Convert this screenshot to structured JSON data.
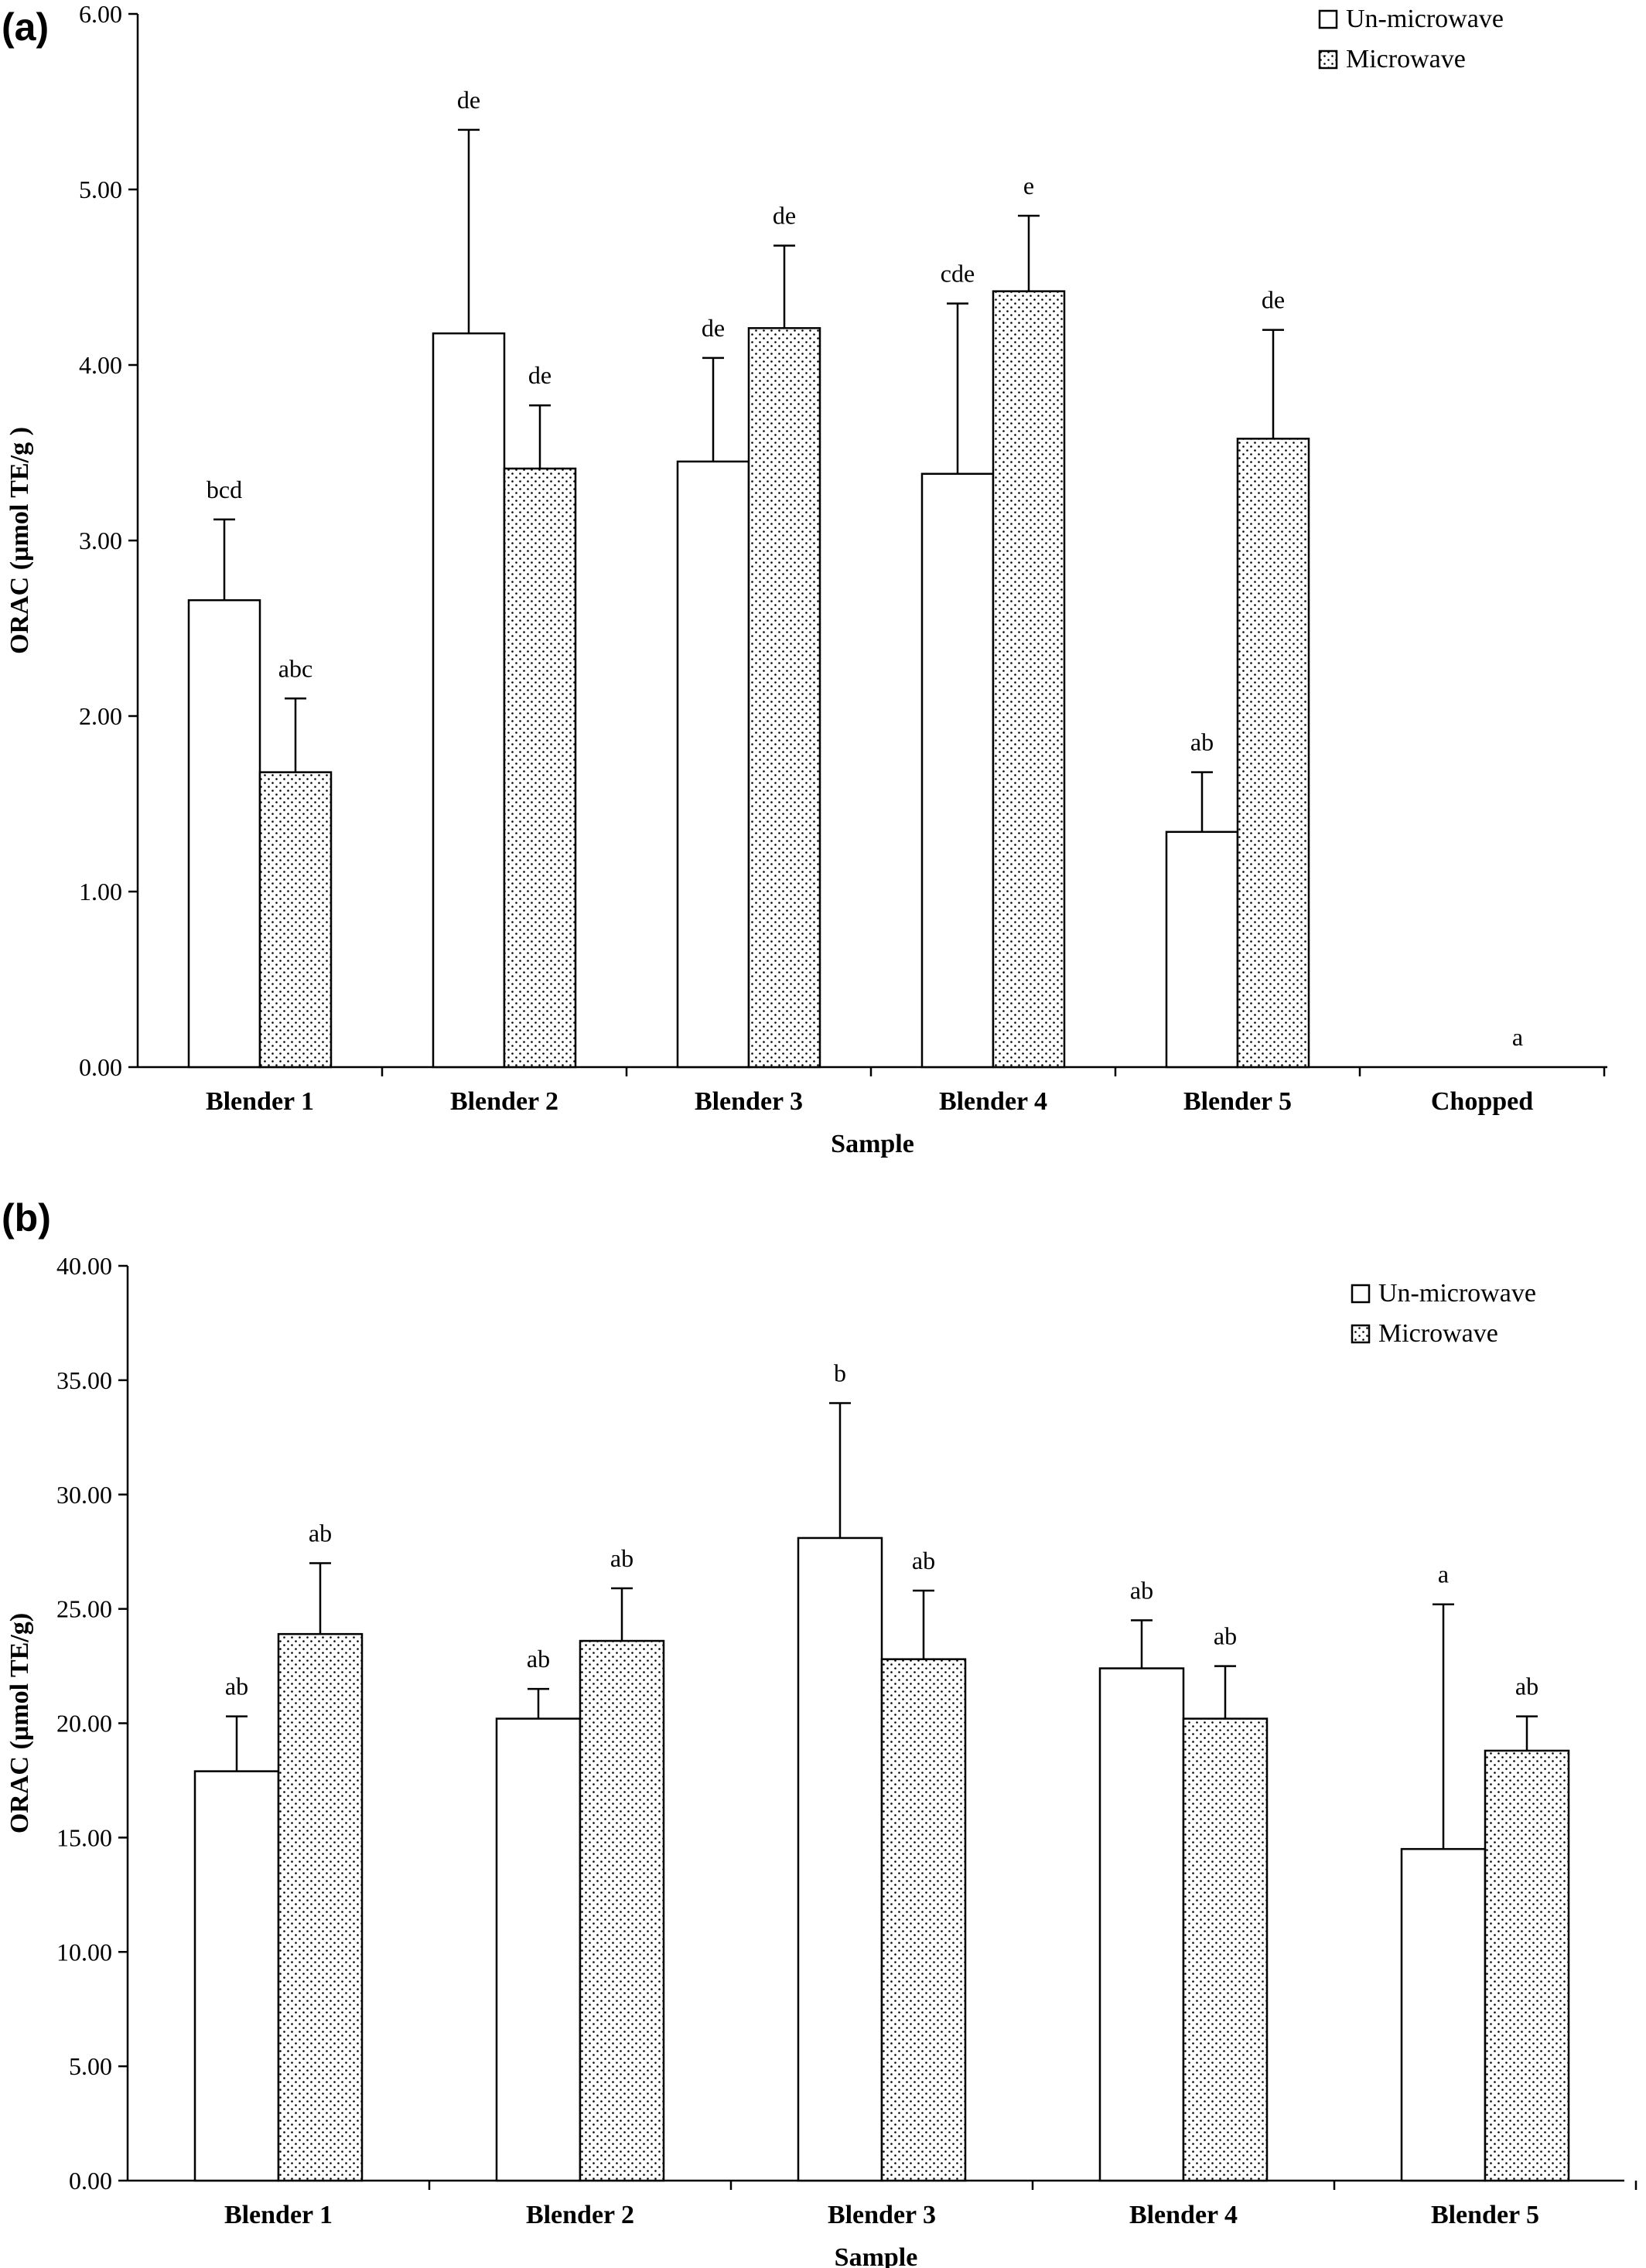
{
  "chart_data": [
    {
      "type": "bar",
      "panel_label": "(a)",
      "categories": [
        "Blender 1",
        "Blender 2",
        "Blender 3",
        "Blender 4",
        "Blender 5",
        "Chopped"
      ],
      "xlabel": "Sample",
      "ylabel": "ORAC (µmol  TE/g )",
      "ylim": [
        0,
        6
      ],
      "yticks": [
        "0.00",
        "1.00",
        "2.00",
        "3.00",
        "4.00",
        "5.00",
        "6.00"
      ],
      "legend_position": "top-right",
      "series": [
        {
          "name": "Un-microwave",
          "fill": "white",
          "values": [
            2.66,
            4.18,
            3.45,
            3.38,
            1.34,
            0
          ],
          "errors": [
            0.46,
            1.16,
            0.59,
            0.97,
            0.34,
            0
          ],
          "labels": [
            "bcd",
            "de",
            "de",
            "cde",
            "ab",
            ""
          ]
        },
        {
          "name": "Microwave",
          "fill": "dotted",
          "values": [
            1.68,
            3.41,
            4.21,
            4.42,
            3.58,
            0
          ],
          "errors": [
            0.42,
            0.36,
            0.47,
            0.43,
            0.62,
            0
          ],
          "labels": [
            "abc",
            "de",
            "de",
            "e",
            "de",
            "a"
          ]
        }
      ]
    },
    {
      "type": "bar",
      "panel_label": "(b)",
      "categories": [
        "Blender 1",
        "Blender 2",
        "Blender 3",
        "Blender 4",
        "Blender 5"
      ],
      "xlabel": "Sample",
      "ylabel": "ORAC (µmol TE/g)",
      "ylim": [
        0,
        40
      ],
      "yticks": [
        "0.00",
        "5.00",
        "10.00",
        "15.00",
        "20.00",
        "25.00",
        "30.00",
        "35.00",
        "40.00"
      ],
      "legend_position": "top-right",
      "series": [
        {
          "name": "Un-microwave",
          "fill": "white",
          "values": [
            17.9,
            20.2,
            28.1,
            22.4,
            14.5
          ],
          "errors": [
            2.4,
            1.3,
            5.9,
            2.1,
            10.7
          ],
          "labels": [
            "ab",
            "ab",
            "b",
            "ab",
            "a"
          ]
        },
        {
          "name": "Microwave",
          "fill": "dotted",
          "values": [
            23.9,
            23.6,
            22.8,
            20.2,
            18.8
          ],
          "errors": [
            3.1,
            2.3,
            3.0,
            2.3,
            1.5
          ],
          "labels": [
            "ab",
            "ab",
            "ab",
            "ab",
            "ab"
          ]
        }
      ]
    }
  ]
}
